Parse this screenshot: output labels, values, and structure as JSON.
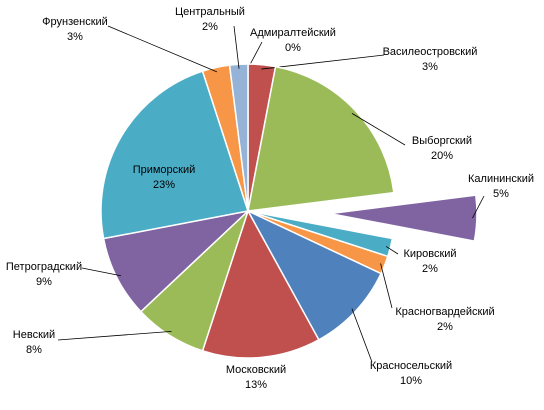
{
  "chart_data": {
    "type": "pie",
    "categories": [
      "Адмиралтейский",
      "Василеостровский",
      "Выборгский",
      "Калининский",
      "Кировский",
      "Красногвардейский",
      "Красносельский",
      "Московский",
      "Невский",
      "Петроградский",
      "Приморский",
      "Фрунзенский",
      "Центральный"
    ],
    "values": [
      0,
      3,
      20,
      5,
      2,
      2,
      10,
      13,
      8,
      9,
      23,
      3,
      2
    ],
    "value_labels": [
      "0%",
      "3%",
      "20%",
      "5%",
      "2%",
      "2%",
      "10%",
      "13%",
      "8%",
      "9%",
      "23%",
      "3%",
      "2%"
    ],
    "colors": [
      "#4f81bd",
      "#c0504d",
      "#9bbb59",
      "#8064a2",
      "#4bacc6",
      "#f79646",
      "#4f81bd",
      "#c0504d",
      "#9bbb59",
      "#8064a2",
      "#4bacc6",
      "#f79646",
      "#95b3d7"
    ],
    "exploded": [
      "Калининский"
    ]
  }
}
